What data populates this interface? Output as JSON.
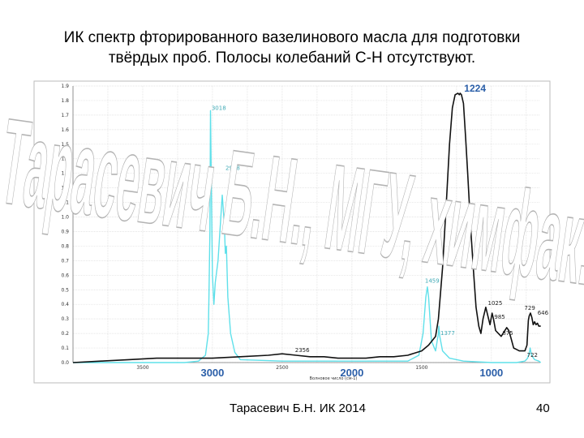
{
  "slide": {
    "title": "ИК спектр фторированного вазелинового масла для подготовки твёрдых проб. Полосы колебаний С-Н отсутствуют.",
    "footer_author": "Тарасевич Б.Н.  ИК 2014",
    "page_number": "40",
    "watermark": "Тарасевич Б.Н., МГУ, химфак."
  },
  "chart_data": {
    "type": "line",
    "xlabel": "Волновое число (см-1)",
    "ylabel": "",
    "xlim": [
      4000,
      650
    ],
    "ylim": [
      0,
      1.9
    ],
    "x_major_ticks": [
      "3000",
      "2000",
      "1000"
    ],
    "x_minor_ticks": [
      "3500",
      "2500",
      "1500"
    ],
    "y_ticks": [
      "0.0",
      "0.1",
      "0.2",
      "0.3",
      "0.4",
      "0.5",
      "0.6",
      "0.7",
      "0.8",
      "0.9",
      "1.0",
      "1.1",
      "1.2",
      "1.3",
      "1.4",
      "1.5",
      "1.6",
      "1.7",
      "1.8",
      "1.9"
    ],
    "grid": true,
    "colors": {
      "fluorinated_oil": "#111111",
      "vaseline_oil": "#5fe0ea",
      "axis_labels": "#2a5ea8"
    },
    "series": [
      {
        "x": [
          4000,
          3800,
          3600,
          3400,
          3200,
          3000,
          2800,
          2600,
          2500,
          2400,
          2300,
          2200,
          2100,
          2000,
          1900,
          1800,
          1700,
          1600,
          1500,
          1450,
          1400,
          1380,
          1350,
          1320,
          1300,
          1280,
          1260,
          1240,
          1230,
          1224,
          1215,
          1200,
          1185,
          1170,
          1150,
          1130,
          1110,
          1090,
          1075,
          1060,
          1040,
          1025,
          1010,
          995,
          985,
          970,
          950,
          930,
          910,
          890,
          875,
          860,
          840,
          820,
          800,
          780,
          760,
          745,
          735,
          729,
          720,
          710,
          700,
          690,
          680,
          670,
          660,
          646
        ],
        "values": [
          0.0,
          0.01,
          0.02,
          0.03,
          0.03,
          0.03,
          0.04,
          0.05,
          0.06,
          0.05,
          0.04,
          0.04,
          0.03,
          0.03,
          0.03,
          0.04,
          0.04,
          0.05,
          0.08,
          0.12,
          0.18,
          0.3,
          0.65,
          1.15,
          1.5,
          1.75,
          1.84,
          1.85,
          1.84,
          1.85,
          1.84,
          1.78,
          1.55,
          1.3,
          0.95,
          0.65,
          0.38,
          0.25,
          0.2,
          0.3,
          0.38,
          0.32,
          0.26,
          0.34,
          0.3,
          0.22,
          0.2,
          0.18,
          0.21,
          0.24,
          0.22,
          0.17,
          0.1,
          0.09,
          0.08,
          0.08,
          0.08,
          0.12,
          0.29,
          0.32,
          0.34,
          0.31,
          0.26,
          0.28,
          0.26,
          0.27,
          0.25,
          0.25
        ]
      },
      {
        "x": [
          4000,
          3200,
          3100,
          3050,
          3030,
          3025,
          3018,
          3014,
          3008,
          3000,
          2990,
          2980,
          2960,
          2930,
          2915,
          2908,
          2900,
          2890,
          2870,
          2840,
          2800,
          2500,
          2000,
          1600,
          1520,
          1490,
          1470,
          1459,
          1450,
          1430,
          1400,
          1380,
          1377,
          1370,
          1350,
          1300,
          1200,
          1000,
          900,
          820,
          760,
          740,
          725,
          722,
          712,
          690,
          660,
          646
        ],
        "values": [
          0.0,
          0.0,
          0.01,
          0.05,
          0.2,
          0.45,
          0.9,
          1.73,
          1.2,
          0.6,
          0.4,
          0.55,
          0.7,
          1.15,
          0.95,
          0.75,
          0.8,
          0.45,
          0.2,
          0.07,
          0.02,
          0.01,
          0.01,
          0.01,
          0.05,
          0.2,
          0.45,
          0.52,
          0.45,
          0.15,
          0.08,
          0.2,
          0.25,
          0.18,
          0.08,
          0.03,
          0.01,
          0.0,
          0.0,
          0.0,
          0.01,
          0.03,
          0.08,
          0.1,
          0.05,
          0.02,
          0.01,
          0.0
        ]
      }
    ],
    "peak_labels": [
      {
        "x": 3018,
        "y": 1.73,
        "text": "3018",
        "color": "cyan"
      },
      {
        "x": 2918,
        "y": 1.15,
        "text": "2918",
        "color": "cyan"
      },
      {
        "x": 1459,
        "y": 0.52,
        "text": "1459",
        "color": "cyan"
      },
      {
        "x": 1377,
        "y": 0.25,
        "text": "1377",
        "color": "cyan"
      },
      {
        "x": 2356,
        "y": 0.05,
        "text": "2356",
        "color": "black"
      },
      {
        "x": 1224,
        "y": 1.85,
        "text": "1224",
        "color": "blue"
      },
      {
        "x": 1025,
        "y": 0.38,
        "text": "1025",
        "color": "black"
      },
      {
        "x": 985,
        "y": 0.34,
        "text": "985",
        "color": "black"
      },
      {
        "x": 875,
        "y": 0.24,
        "text": "875",
        "color": "black"
      },
      {
        "x": 729,
        "y": 0.34,
        "text": "729",
        "color": "black"
      },
      {
        "x": 722,
        "y": 0.1,
        "text": "722",
        "color": "black"
      },
      {
        "x": 646,
        "y": 0.29,
        "text": "646",
        "color": "black"
      }
    ]
  }
}
